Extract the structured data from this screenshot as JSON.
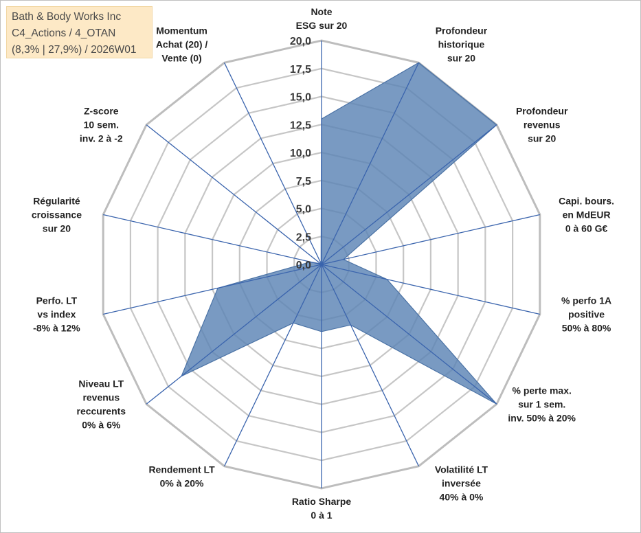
{
  "info_box": {
    "line1": "Bath & Body Works Inc",
    "line2": "C4_Actions / 4_OTAN",
    "line3": "(8,3% | 27,9%) / 2026W01"
  },
  "colors": {
    "series_fill": "#5b84b5",
    "series_stroke": "#4a72a5",
    "spoke": "#3a64ad",
    "ring": "#c6c6c6",
    "outer_ring": "#bdbdbd",
    "info_bg": "#fde9c6"
  },
  "chart_data": {
    "type": "radar",
    "rmin": 0,
    "rmax": 20,
    "ticks": [
      "0,0",
      "2,5",
      "5,0",
      "7,5",
      "10,0",
      "12,5",
      "15,0",
      "17,5",
      "20,0"
    ],
    "axes": [
      {
        "lines": [
          "Note",
          "ESG sur 20"
        ],
        "value": 13
      },
      {
        "lines": [
          "Profondeur",
          "historique",
          "sur 20"
        ],
        "value": 20
      },
      {
        "lines": [
          "Profondeur",
          "revenus",
          "sur 20"
        ],
        "value": 20
      },
      {
        "lines": [
          "Capi. bours.",
          "en MdEUR",
          "0 à 60 G€"
        ],
        "value": 2.0
      },
      {
        "lines": [
          "% perfo 1A",
          "positive",
          "50% à 80%"
        ],
        "value": 6.0
      },
      {
        "lines": [
          "% perte max.",
          "sur 1 sem.",
          "inv. 50% à 20%"
        ],
        "value": 20
      },
      {
        "lines": [
          "Volatilité LT",
          "inversée",
          "40% à 0%"
        ],
        "value": 6.0
      },
      {
        "lines": [
          "Ratio Sharpe",
          "0 à 1"
        ],
        "value": 6.0
      },
      {
        "lines": [
          "Rendement LT",
          "0% à 20%"
        ],
        "value": 5.8
      },
      {
        "lines": [
          "Niveau LT",
          "revenus",
          "reccurents",
          "0% à 6%"
        ],
        "value": 16.0
      },
      {
        "lines": [
          "Perfo. LT",
          "vs index",
          "-8% à 12%"
        ],
        "value": 9.5
      },
      {
        "lines": [
          "Régularité",
          "croissance",
          "sur 20"
        ],
        "value": 1.0
      },
      {
        "lines": [
          "Z-score",
          "10 sem.",
          "inv. 2 à -2"
        ],
        "value": 0.1
      },
      {
        "lines": [
          "Momentum",
          "Achat (20) /",
          "Vente (0)"
        ],
        "value": 0.1
      }
    ]
  }
}
